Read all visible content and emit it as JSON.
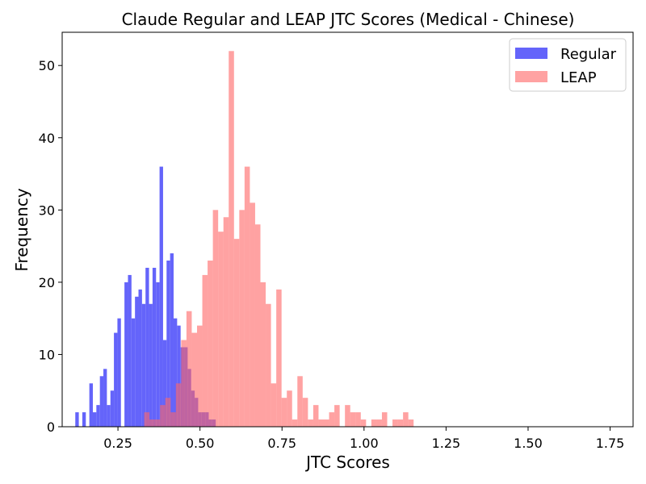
{
  "chart_data": {
    "type": "histogram",
    "title": "Claude Regular and LEAP JTC Scores (Medical - Chinese)",
    "xlabel": "JTC Scores",
    "ylabel": "Frequency",
    "xlim": [
      0.08,
      1.82
    ],
    "ylim": [
      0,
      54.6
    ],
    "xticks": [
      0.25,
      0.5,
      0.75,
      1.0,
      1.25,
      1.5,
      1.75
    ],
    "xtick_labels": [
      "0.25",
      "0.50",
      "0.75",
      "1.00",
      "1.25",
      "1.50",
      "1.75"
    ],
    "yticks": [
      0,
      10,
      20,
      30,
      40,
      50
    ],
    "ytick_labels": [
      "0",
      "10",
      "20",
      "30",
      "40",
      "50"
    ],
    "legend_position": "upper right",
    "grid": false,
    "series": [
      {
        "name": "Regular",
        "color": "#6464fa",
        "bin_start": 0.12,
        "bin_width": 0.0107,
        "counts": [
          2,
          0,
          2,
          0,
          6,
          2,
          3,
          7,
          8,
          3,
          5,
          13,
          15,
          0,
          20,
          21,
          15,
          18,
          19,
          17,
          22,
          17,
          22,
          20,
          36,
          12,
          23,
          24,
          15,
          14,
          11,
          11,
          8,
          5,
          4,
          2,
          2,
          2,
          1,
          1
        ]
      },
      {
        "name": "LEAP",
        "color": "#ff6464",
        "bin_start": 0.33,
        "bin_width": 0.0161,
        "counts": [
          2,
          1,
          1,
          3,
          4,
          2,
          6,
          12,
          16,
          13,
          14,
          21,
          23,
          30,
          27,
          29,
          52,
          26,
          30,
          36,
          31,
          28,
          20,
          17,
          6,
          19,
          4,
          5,
          1,
          7,
          4,
          1,
          3,
          1,
          1,
          2,
          3,
          0,
          3,
          2,
          2,
          1,
          0,
          1,
          1,
          2,
          0,
          1,
          1,
          2,
          1
        ]
      }
    ]
  }
}
